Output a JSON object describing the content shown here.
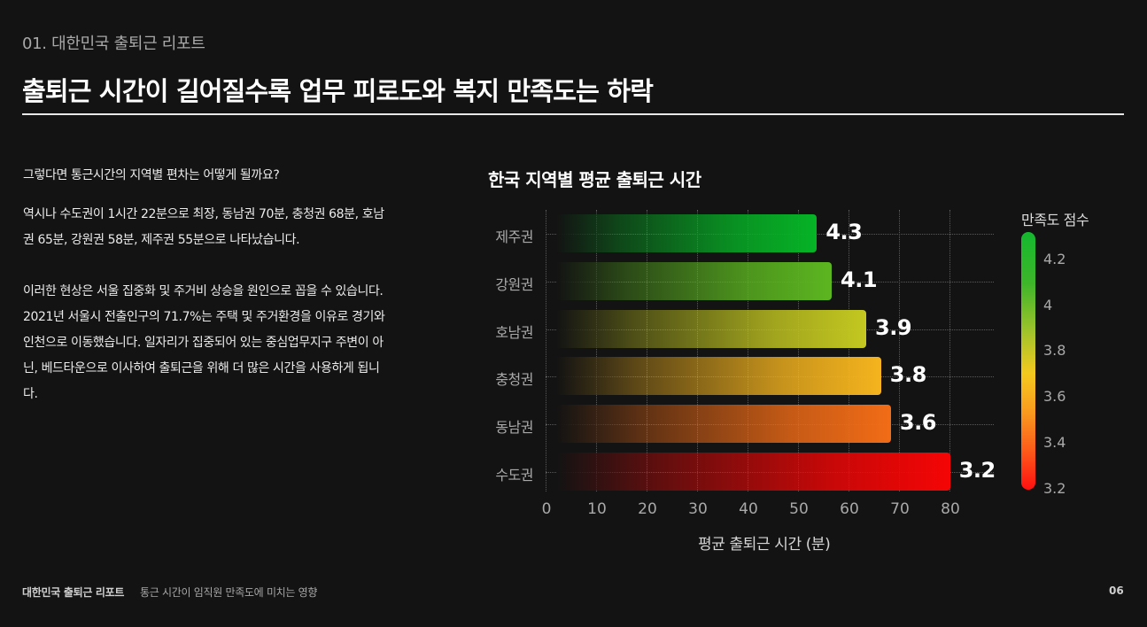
{
  "header": {
    "section_label": "01. 대한민국 출퇴근 리포트",
    "title": "출퇴근 시간이 길어질수록 업무 피로도와 복지 만족도는 하락"
  },
  "body": {
    "question": "그렇다면 통근시간의 지역별 편차는 어떻게 될까요?",
    "paragraph1": "역시나 수도권이 1시간 22분으로 최장, 동남권 70분, 충청권 68분, 호남권 65분, 강원권 58분, 제주권 55분으로 나타났습니다.",
    "paragraph2": "이러한 현상은 서울 집중화 및 주거비 상승을 원인으로 꼽을 수 있습니다. 2021년 서울시 전출인구의 71.7%는 주택 및 주거환경을 이유로 경기와 인천으로 이동했습니다. 일자리가 집중되어 있는 중심업무지구 주변이 아닌, 베드타운으로 이사하여 출퇴근을 위해 더 많은 시간을 사용하게 됩니다."
  },
  "chart_data": {
    "type": "bar",
    "orientation": "horizontal",
    "title": "한국 지역별 평균 출퇴근 시간",
    "xlabel": "평균 출퇴근 시간 (분)",
    "ylabel": "",
    "categories": [
      "제주권",
      "강원권",
      "호남권",
      "충청권",
      "동남권",
      "수도권"
    ],
    "values": [
      55,
      58,
      65,
      68,
      70,
      82
    ],
    "bar_labels": [
      "4.3",
      "4.1",
      "3.9",
      "3.8",
      "3.6",
      "3.2"
    ],
    "satisfaction_scores": [
      4.3,
      4.1,
      3.9,
      3.8,
      3.6,
      3.2
    ],
    "bar_colors": [
      "#06b326",
      "#5cb620",
      "#c4c820",
      "#f5b41e",
      "#f26c16",
      "#f50505"
    ],
    "xticks": [
      "0",
      "10",
      "20",
      "30",
      "40",
      "50",
      "60",
      "70",
      "80"
    ],
    "xlim": [
      0,
      80
    ],
    "grid": true,
    "colorbar": {
      "title": "만족도 점수",
      "ticks": [
        "4.2",
        "4",
        "3.8",
        "3.6",
        "3.4",
        "3.2"
      ],
      "range": [
        3.2,
        4.3
      ],
      "colors": [
        "#14b82e",
        "#f5c91e",
        "#ff1010"
      ]
    }
  },
  "footer": {
    "brand": "대한민국 출퇴근 리포트",
    "subtitle": "통근 시간이 임직원 만족도에 미치는 영향",
    "page_number": "06"
  }
}
